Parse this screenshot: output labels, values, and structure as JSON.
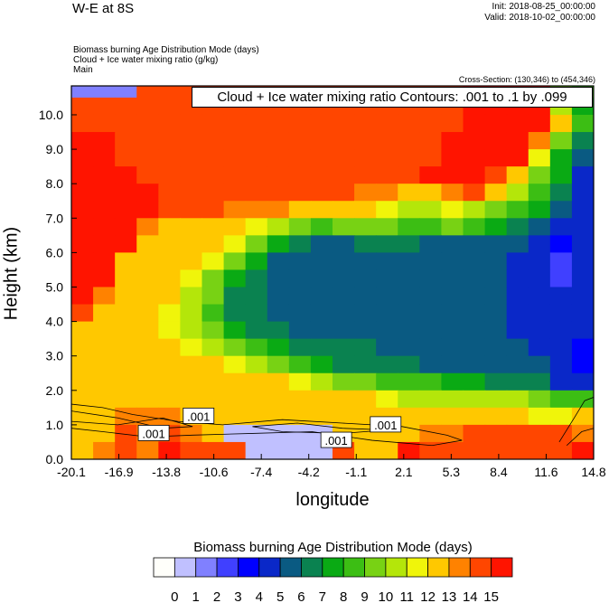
{
  "header": {
    "title": "W-E at 8S",
    "init": "Init: 2018-08-25_00:00:00",
    "valid": "Valid: 2018-10-02_00:00:00",
    "fields": [
      "Biomass burning Age Distribution Mode    (days)",
      "Cloud + Ice water mixing ratio    (g/kg)",
      "Main"
    ],
    "cross_section": "Cross-Section: (130,346) to (454,346)"
  },
  "chart_data": {
    "type": "heatmap",
    "contour_title": "Cloud + Ice water mixing ratio Contours: .001 to .1 by .099",
    "xlabel": "longitude",
    "ylabel": "Height (km)",
    "xlim": [
      -20.1,
      14.8
    ],
    "ylim": [
      0,
      10.8
    ],
    "xticks": [
      "-20.1",
      "-16.9",
      "-13.8",
      "-10.6",
      "-7.4",
      "-4.2",
      "-1.1",
      "2.1",
      "5.3",
      "8.4",
      "11.6",
      "14.8"
    ],
    "yticks": [
      "0.0",
      "1.0",
      "2.0",
      "3.0",
      "4.0",
      "5.0",
      "6.0",
      "7.0",
      "8.0",
      "9.0",
      "10.0"
    ],
    "row_height_km": 0.5,
    "grid_rows_top_to_bottom": [
      [
        1,
        1,
        1,
        14,
        14,
        14,
        14,
        14,
        14,
        14,
        14,
        14,
        14,
        14,
        14,
        14,
        14,
        14,
        15,
        15,
        15,
        15,
        9,
        8
      ],
      [
        14,
        14,
        14,
        14,
        14,
        14,
        14,
        14,
        14,
        14,
        14,
        14,
        14,
        14,
        14,
        14,
        14,
        14,
        15,
        15,
        15,
        15,
        10,
        7
      ],
      [
        14,
        14,
        14,
        14,
        14,
        14,
        14,
        14,
        14,
        14,
        14,
        14,
        14,
        14,
        14,
        14,
        14,
        14,
        15,
        15,
        15,
        15,
        12,
        8
      ],
      [
        15,
        15,
        14,
        14,
        14,
        14,
        14,
        14,
        14,
        14,
        14,
        14,
        14,
        14,
        14,
        14,
        14,
        15,
        15,
        15,
        15,
        13,
        9,
        6
      ],
      [
        15,
        15,
        14,
        14,
        14,
        14,
        14,
        14,
        14,
        14,
        14,
        14,
        14,
        14,
        14,
        14,
        14,
        15,
        15,
        15,
        15,
        11,
        7,
        5
      ],
      [
        15,
        15,
        15,
        14,
        14,
        14,
        14,
        14,
        14,
        14,
        14,
        14,
        14,
        14,
        14,
        14,
        15,
        15,
        15,
        14,
        12,
        9,
        7,
        4
      ],
      [
        15,
        15,
        15,
        15,
        14,
        14,
        14,
        14,
        14,
        14,
        14,
        14,
        14,
        13,
        13,
        12,
        12,
        13,
        14,
        12,
        10,
        8,
        6,
        4
      ],
      [
        15,
        15,
        15,
        15,
        14,
        14,
        14,
        13,
        13,
        13,
        12,
        12,
        12,
        12,
        11,
        10,
        10,
        11,
        10,
        9,
        8,
        7,
        5,
        4
      ],
      [
        15,
        15,
        15,
        13,
        12,
        12,
        12,
        12,
        11,
        10,
        9,
        8,
        9,
        9,
        9,
        8,
        8,
        9,
        8,
        7,
        6,
        5,
        4,
        4
      ],
      [
        15,
        15,
        15,
        12,
        12,
        12,
        12,
        11,
        9,
        7,
        6,
        5,
        5,
        6,
        6,
        6,
        5,
        5,
        5,
        5,
        5,
        4,
        3,
        4
      ],
      [
        15,
        15,
        12,
        12,
        12,
        12,
        11,
        9,
        7,
        5,
        5,
        5,
        5,
        5,
        5,
        5,
        5,
        5,
        5,
        5,
        4,
        4,
        2,
        4
      ],
      [
        15,
        15,
        12,
        12,
        12,
        11,
        9,
        7,
        6,
        5,
        5,
        5,
        5,
        5,
        5,
        5,
        5,
        5,
        5,
        5,
        4,
        4,
        2,
        4
      ],
      [
        15,
        13,
        12,
        12,
        12,
        10,
        9,
        6,
        6,
        5,
        5,
        5,
        5,
        5,
        5,
        5,
        5,
        5,
        5,
        5,
        4,
        4,
        4,
        4
      ],
      [
        14,
        12,
        12,
        12,
        11,
        10,
        8,
        6,
        6,
        5,
        5,
        5,
        5,
        5,
        5,
        5,
        5,
        5,
        5,
        5,
        4,
        4,
        4,
        4
      ],
      [
        12,
        12,
        12,
        12,
        11,
        10,
        9,
        7,
        6,
        6,
        5,
        5,
        5,
        5,
        5,
        5,
        5,
        5,
        5,
        5,
        4,
        4,
        4,
        4
      ],
      [
        12,
        12,
        12,
        12,
        12,
        11,
        10,
        9,
        8,
        7,
        6,
        6,
        6,
        6,
        5,
        5,
        5,
        5,
        5,
        5,
        5,
        4,
        4,
        3
      ],
      [
        12,
        12,
        12,
        12,
        12,
        12,
        12,
        11,
        10,
        9,
        8,
        7,
        6,
        6,
        6,
        6,
        5,
        5,
        5,
        5,
        5,
        5,
        4,
        3
      ],
      [
        12,
        12,
        12,
        12,
        12,
        12,
        12,
        12,
        12,
        12,
        11,
        10,
        9,
        9,
        8,
        8,
        8,
        7,
        7,
        6,
        6,
        6,
        4,
        4
      ],
      [
        12,
        12,
        12,
        12,
        12,
        12,
        12,
        12,
        12,
        12,
        12,
        12,
        12,
        12,
        11,
        10,
        10,
        10,
        10,
        10,
        10,
        9,
        8,
        8
      ],
      [
        12,
        12,
        13,
        13,
        13,
        12,
        12,
        12,
        12,
        12,
        12,
        12,
        12,
        12,
        12,
        12,
        12,
        12,
        12,
        12,
        12,
        11,
        11,
        12
      ],
      [
        12,
        12,
        14,
        13,
        14,
        13,
        12,
        0,
        0,
        0,
        0,
        0,
        12,
        12,
        12,
        12,
        13,
        13,
        14,
        14,
        14,
        14,
        14,
        13
      ],
      [
        12,
        13,
        14,
        13,
        15,
        14,
        14,
        14,
        0,
        0,
        0,
        0,
        14,
        12,
        12,
        15,
        14,
        14,
        14,
        14,
        14,
        14,
        14,
        15
      ]
    ],
    "contour_labels": [
      {
        "text": ".001",
        "lon": -14.6,
        "km": 0.75
      },
      {
        "text": ".001",
        "lon": -11.6,
        "km": 1.25
      },
      {
        "text": ".001",
        "lon": -2.4,
        "km": 0.55
      },
      {
        "text": ".001",
        "lon": 0.9,
        "km": 1.0
      }
    ],
    "colorbar": {
      "title": "Biomass burning Age Distribution Mode  (days)",
      "colors": [
        "#fffffa",
        "#c0c0ff",
        "#8080ff",
        "#4040ff",
        "#0000ff",
        "#0a28c8",
        "#0a5a82",
        "#0a8250",
        "#0aaa14",
        "#3cbe14",
        "#78d214",
        "#b4e60a",
        "#f0f50a",
        "#ffc800",
        "#ff8200",
        "#ff4600",
        "#ff1400"
      ],
      "labels": [
        "0",
        "1",
        "2",
        "3",
        "4",
        "5",
        "6",
        "7",
        "8",
        "9",
        "10",
        "11",
        "12",
        "13",
        "14",
        "15"
      ]
    }
  }
}
